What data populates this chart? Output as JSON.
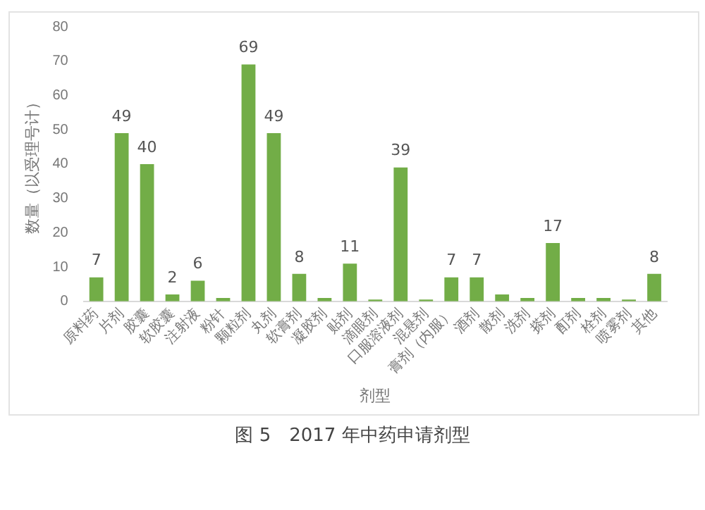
{
  "chart_data": {
    "type": "bar",
    "title": "图 5　2017 年中药申请剂型",
    "xlabel": "剂型",
    "ylabel": "数量（以受理号计）",
    "categories": [
      "原料药",
      "片剂",
      "胶囊",
      "软胶囊",
      "注射液",
      "粉针",
      "颗粒剂",
      "丸剂",
      "软膏剂",
      "凝胶剂",
      "贴剂",
      "滴眼剂",
      "口服溶液剂",
      "混悬剂",
      "膏剂（内服）",
      "酒剂",
      "散剂",
      "洗剂",
      "搽剂",
      "酊剂",
      "栓剂",
      "喷雾剂",
      "其他"
    ],
    "values": [
      7,
      49,
      40,
      2,
      6,
      1,
      69,
      49,
      8,
      1,
      11,
      0.5,
      39,
      0.5,
      7,
      7,
      2,
      1,
      17,
      1,
      1,
      0.5,
      8
    ],
    "value_labels": [
      "7",
      "49",
      "40",
      "2",
      "6",
      null,
      "69",
      "49",
      "8",
      null,
      "11",
      null,
      "39",
      null,
      "7",
      "7",
      null,
      null,
      "17",
      null,
      null,
      null,
      "8"
    ],
    "color": "#72ad47",
    "ylim": [
      0,
      80
    ],
    "yticks": [
      0,
      10,
      20,
      30,
      40,
      50,
      60,
      70,
      80
    ],
    "grid": false
  }
}
